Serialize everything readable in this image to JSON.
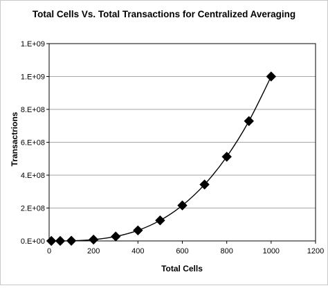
{
  "chart_data": {
    "type": "line",
    "title": "Total Cells Vs. Total Transactions for Centralized Averaging",
    "xlabel": "Total Cells",
    "ylabel": "Transactrions",
    "xlim": [
      0,
      1200
    ],
    "ylim": [
      0,
      1200000000
    ],
    "x_ticks": [
      0,
      200,
      400,
      600,
      800,
      1000,
      1200
    ],
    "x_tick_labels": [
      "0",
      "200",
      "400",
      "600",
      "800",
      "1000",
      "1200"
    ],
    "y_ticks": [
      0,
      200000000,
      400000000,
      600000000,
      800000000,
      1000000000,
      1200000000
    ],
    "y_tick_labels": [
      "0.E+00",
      "2.E+08",
      "4.E+08",
      "6.E+08",
      "8.E+08",
      "1.E+09",
      "1.E+09"
    ],
    "grid": "horizontal",
    "marker": "diamond",
    "series": [
      {
        "color": "#000000",
        "x": [
          10,
          50,
          100,
          200,
          300,
          400,
          500,
          600,
          700,
          800,
          900,
          1000
        ],
        "y": [
          1000,
          125000,
          1000000,
          8000000,
          27000000,
          64000000,
          125000000,
          216000000,
          343000000,
          512000000,
          729000000,
          1000000000
        ]
      }
    ]
  }
}
